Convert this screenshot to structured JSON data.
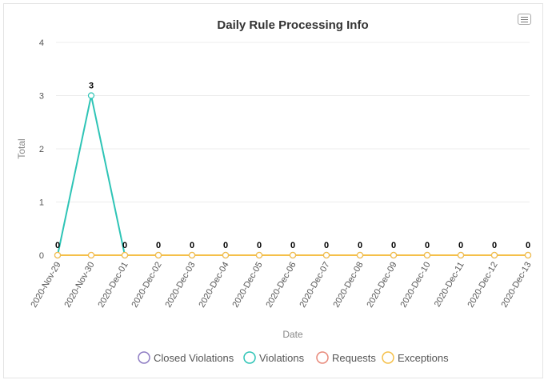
{
  "chart_data": {
    "type": "line",
    "title": "Daily Rule Processing Info",
    "xlabel": "Date",
    "ylabel": "Total",
    "ylim": [
      0,
      4
    ],
    "yticks": [
      "0",
      "1",
      "2",
      "3",
      "4"
    ],
    "categories": [
      "2020-Nov-29",
      "2020-Nov-30",
      "2020-Dec-01",
      "2020-Dec-02",
      "2020-Dec-03",
      "2020-Dec-04",
      "2020-Dec-05",
      "2020-Dec-06",
      "2020-Dec-07",
      "2020-Dec-08",
      "2020-Dec-09",
      "2020-Dec-10",
      "2020-Dec-11",
      "2020-Dec-12",
      "2020-Dec-13"
    ],
    "series": [
      {
        "name": "Closed Violations",
        "color": "#8e7cc3",
        "values": [
          0,
          0,
          0,
          0,
          0,
          0,
          0,
          0,
          0,
          0,
          0,
          0,
          0,
          0,
          0
        ]
      },
      {
        "name": "Violations",
        "color": "#2ec4b6",
        "values": [
          0,
          3,
          0,
          0,
          0,
          0,
          0,
          0,
          0,
          0,
          0,
          0,
          0,
          0,
          0
        ]
      },
      {
        "name": "Requests",
        "color": "#e8897a",
        "values": [
          0,
          0,
          0,
          0,
          0,
          0,
          0,
          0,
          0,
          0,
          0,
          0,
          0,
          0,
          0
        ]
      },
      {
        "name": "Exceptions",
        "color": "#f5c04a",
        "values": [
          0,
          0,
          0,
          0,
          0,
          0,
          0,
          0,
          0,
          0,
          0,
          0,
          0,
          0,
          0
        ]
      }
    ],
    "legend_position": "bottom",
    "grid": true,
    "data_labels": [
      "0",
      "3",
      "0",
      "0",
      "0",
      "0",
      "0",
      "0",
      "0",
      "0",
      "0",
      "0",
      "0",
      "0",
      "0"
    ]
  }
}
